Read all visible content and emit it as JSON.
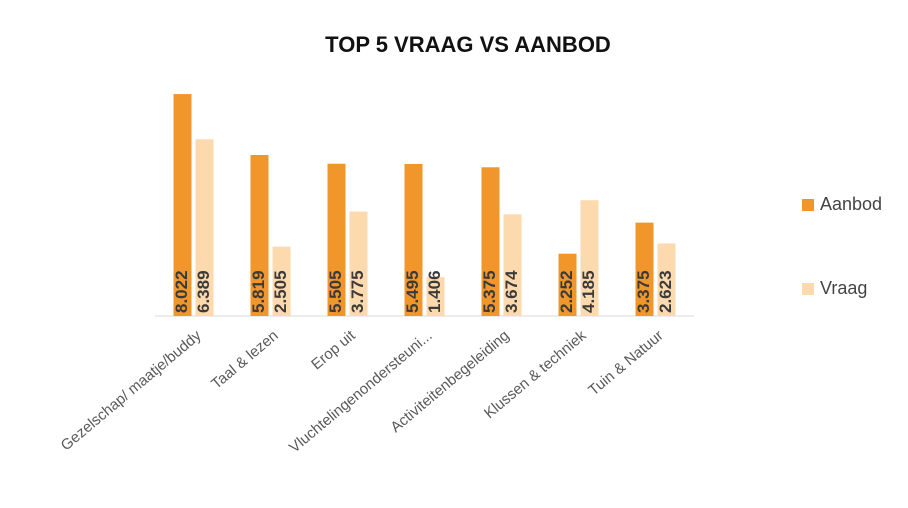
{
  "chart_data": {
    "type": "bar",
    "title": "TOP 5 VRAAG VS AANBOD",
    "categories": [
      "Gezelschap/ maatje/buddy",
      "Taal & lezen",
      "Erop uit",
      "Vluchtelingenondersteuni...",
      "Activiteitenbegeleiding",
      "Klussen & techniek",
      "Tuin & Natuur"
    ],
    "series": [
      {
        "name": "Aanbod",
        "color": "#f0962a",
        "values": [
          8022,
          5819,
          5505,
          5495,
          5375,
          2252,
          3375
        ],
        "value_labels": [
          "8.022",
          "5.819",
          "5.505",
          "5.495",
          "5.375",
          "2.252",
          "3.375"
        ]
      },
      {
        "name": "Vraag",
        "color": "#fdd9ae",
        "values": [
          6389,
          2505,
          3775,
          1406,
          3674,
          4185,
          2623
        ],
        "value_labels": [
          "6.389",
          "2.505",
          "3.775",
          "1.406",
          "3.674",
          "4.185",
          "2.623"
        ]
      }
    ],
    "ylim": [
      0,
      9000
    ],
    "legend": "right"
  }
}
